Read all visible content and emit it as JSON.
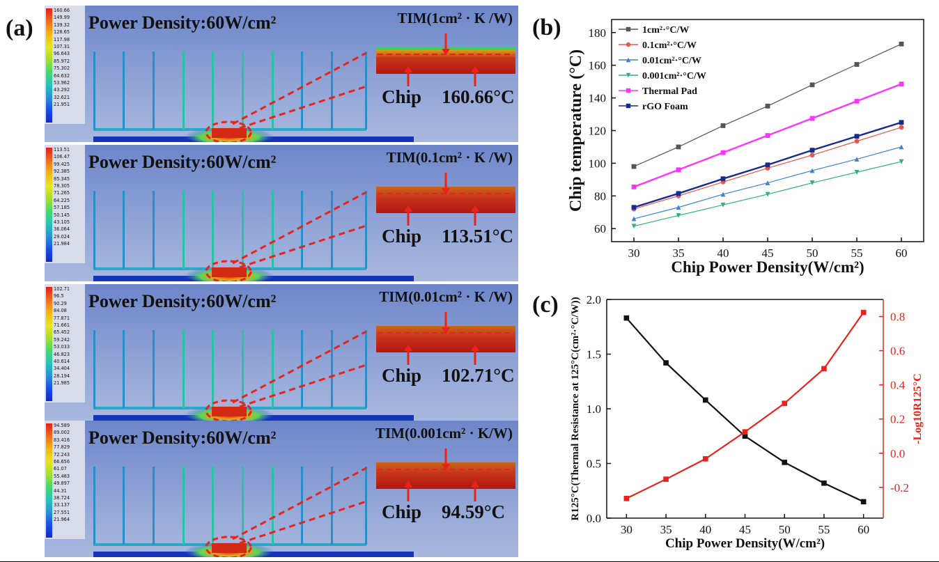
{
  "panel_a": {
    "label": "(a)",
    "sims": [
      {
        "power_density": "Power Density:60W/cm²",
        "tim": "TIM(1cm² · K /W)",
        "chip": "Chip",
        "temperature": "160.66°C",
        "legend": [
          "160.66",
          "149.99",
          "139.32",
          "128.65",
          "117.98",
          "107.31",
          "96.643",
          "85.972",
          "75.302",
          "64.632",
          "53.962",
          "43.292",
          "32.621",
          "21.951"
        ]
      },
      {
        "power_density": "Power Density:60W/cm²",
        "tim": "TIM(0.1cm² · K /W)",
        "chip": "Chip",
        "temperature": "113.51°C",
        "legend": [
          "113.51",
          "106.47",
          "99.425",
          "92.385",
          "85.345",
          "78.305",
          "71.265",
          "64.225",
          "57.185",
          "50.145",
          "43.105",
          "36.064",
          "29.024",
          "21.984"
        ]
      },
      {
        "power_density": "Power Density:60W/cm²",
        "tim": "TIM(0.01cm² · K /W)",
        "chip": "Chip",
        "temperature": "102.71°C",
        "legend": [
          "102.71",
          "96.5",
          "90.29",
          "84.08",
          "77.871",
          "71.661",
          "65.452",
          "59.242",
          "53.033",
          "46.823",
          "40.614",
          "34.404",
          "28.194",
          "21.985"
        ]
      },
      {
        "power_density": "Power Density:60W/cm²",
        "tim": "TIM(0.001cm² · K/W)",
        "chip": "Chip",
        "temperature": "94.59°C",
        "legend": [
          "94.589",
          "89.002",
          "83.416",
          "77.829",
          "72.243",
          "66.656",
          "61.07",
          "55.483",
          "49.897",
          "44.31",
          "38.724",
          "33.137",
          "27.551",
          "21.964"
        ]
      }
    ]
  },
  "chart_data": [
    {
      "label": "(b)",
      "type": "line",
      "xlabel": "Chip Power Density(W/cm²)",
      "ylabel": "Chip temperature (°C)",
      "x": [
        30,
        35,
        40,
        45,
        50,
        55,
        60
      ],
      "xlim": [
        27.5,
        62.5
      ],
      "ylim": [
        52,
        188
      ],
      "xticks": [
        "30",
        "35",
        "40",
        "45",
        "50",
        "55",
        "60"
      ],
      "yticks": [
        60,
        80,
        100,
        120,
        140,
        160,
        180
      ],
      "legend_position": "top-left",
      "series": [
        {
          "name": "1cm²·°C/W",
          "color": "#555555",
          "marker": "square",
          "values": [
            98,
            110,
            123,
            135,
            148,
            160.5,
            173
          ]
        },
        {
          "name": "0.1cm²·°C/W",
          "color": "#e8564a",
          "marker": "circle",
          "values": [
            72,
            80,
            88.5,
            97,
            105,
            113.5,
            122
          ]
        },
        {
          "name": "0.01cm²·°C/W",
          "color": "#3b82d6",
          "marker": "triangle-up",
          "values": [
            66,
            73,
            81,
            88,
            95.5,
            102.5,
            110
          ]
        },
        {
          "name": "0.001cm²·°C/W",
          "color": "#2fae83",
          "marker": "triangle-down",
          "values": [
            61.5,
            68,
            74.5,
            81,
            88,
            94.5,
            101
          ]
        },
        {
          "name": "Thermal Pad",
          "color": "#ff33ff",
          "marker": "square",
          "values": [
            85.5,
            96,
            106.5,
            117,
            127.5,
            138,
            148.5
          ]
        },
        {
          "name": "rGO Foam",
          "color": "#1a2a8c",
          "marker": "square",
          "values": [
            73,
            81.5,
            90.5,
            99,
            108,
            116.5,
            125
          ]
        }
      ]
    },
    {
      "label": "(c)",
      "type": "line",
      "xlabel": "Chip Power Density(W/cm²)",
      "ylabel_left": "R125°C(Thermal Resistance at 125°C(cm²·°C/W))",
      "ylabel_right": "-Log10R125°C",
      "x": [
        30,
        35,
        40,
        45,
        50,
        55,
        60
      ],
      "xlim": [
        27.5,
        62.5
      ],
      "ylim_left": [
        0.0,
        2.0
      ],
      "ylim_right": [
        -0.38,
        0.9
      ],
      "xticks": [
        "30",
        "35",
        "40",
        "45",
        "50",
        "55",
        "60"
      ],
      "yticks_left": [
        "0.0",
        "0.5",
        "1.0",
        "1.5",
        "2.0"
      ],
      "yticks_right": [
        "-0.2",
        "0.0",
        "0.2",
        "0.4",
        "0.6",
        "0.8"
      ],
      "series": [
        {
          "name": "R125°C",
          "axis": "left",
          "color": "#111111",
          "marker": "square",
          "values": [
            1.83,
            1.42,
            1.08,
            0.75,
            0.51,
            0.32,
            0.15
          ]
        },
        {
          "name": "-Log10R125°C",
          "axis": "right",
          "color": "#e8231b",
          "marker": "square",
          "values": [
            -0.265,
            -0.152,
            -0.033,
            0.125,
            0.292,
            0.495,
            0.824
          ]
        }
      ]
    }
  ]
}
